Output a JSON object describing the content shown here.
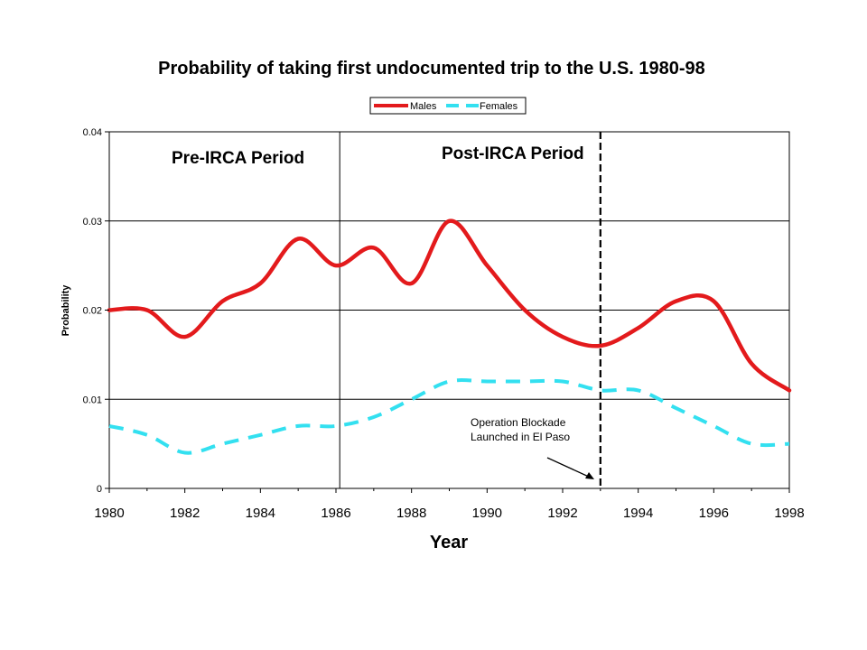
{
  "chart_data": {
    "type": "line",
    "title": "Probability of taking first undocumented trip to the U.S. 1980-98",
    "xlabel": "Year",
    "ylabel": "Probability",
    "xlim": [
      1980,
      1998
    ],
    "ylim": [
      0,
      0.04
    ],
    "x_ticks": [
      "1980",
      "1982",
      "1984",
      "1986",
      "1988",
      "1990",
      "1992",
      "1994",
      "1996",
      "1998"
    ],
    "y_ticks": [
      "0",
      "0.01",
      "0.02",
      "0.03",
      "0.04"
    ],
    "grid": true,
    "legend_position": "top-center",
    "series": [
      {
        "name": "Males",
        "color": "#e31a1c",
        "style": "solid",
        "points": [
          [
            1980,
            0.02
          ],
          [
            1981,
            0.02
          ],
          [
            1982,
            0.017
          ],
          [
            1983,
            0.021
          ],
          [
            1984,
            0.023
          ],
          [
            1985,
            0.028
          ],
          [
            1986,
            0.025
          ],
          [
            1987,
            0.027
          ],
          [
            1988,
            0.023
          ],
          [
            1989,
            0.03
          ],
          [
            1990,
            0.025
          ],
          [
            1991,
            0.02
          ],
          [
            1992,
            0.017
          ],
          [
            1993,
            0.016
          ],
          [
            1994,
            0.018
          ],
          [
            1995,
            0.021
          ],
          [
            1996,
            0.021
          ],
          [
            1997,
            0.014
          ],
          [
            1998,
            0.011
          ]
        ]
      },
      {
        "name": "Females",
        "color": "#33e0f0",
        "style": "dashed",
        "points": [
          [
            1980,
            0.007
          ],
          [
            1981,
            0.006
          ],
          [
            1982,
            0.004
          ],
          [
            1983,
            0.005
          ],
          [
            1984,
            0.006
          ],
          [
            1985,
            0.007
          ],
          [
            1986,
            0.007
          ],
          [
            1987,
            0.008
          ],
          [
            1988,
            0.01
          ],
          [
            1989,
            0.012
          ],
          [
            1990,
            0.012
          ],
          [
            1991,
            0.012
          ],
          [
            1992,
            0.012
          ],
          [
            1993,
            0.011
          ],
          [
            1994,
            0.011
          ],
          [
            1995,
            0.009
          ],
          [
            1996,
            0.007
          ],
          [
            1997,
            0.005
          ],
          [
            1998,
            0.005
          ]
        ]
      }
    ],
    "reference_lines": [
      {
        "x": 1986.1,
        "style": "solid",
        "label": "Pre-IRCA Period"
      },
      {
        "x": 1993.0,
        "style": "dashed",
        "label": "Post-IRCA Period"
      }
    ],
    "annotation": {
      "lines": [
        "Operation Blockade",
        "Launched in El Paso"
      ],
      "points_to_x": 1993.0
    }
  }
}
